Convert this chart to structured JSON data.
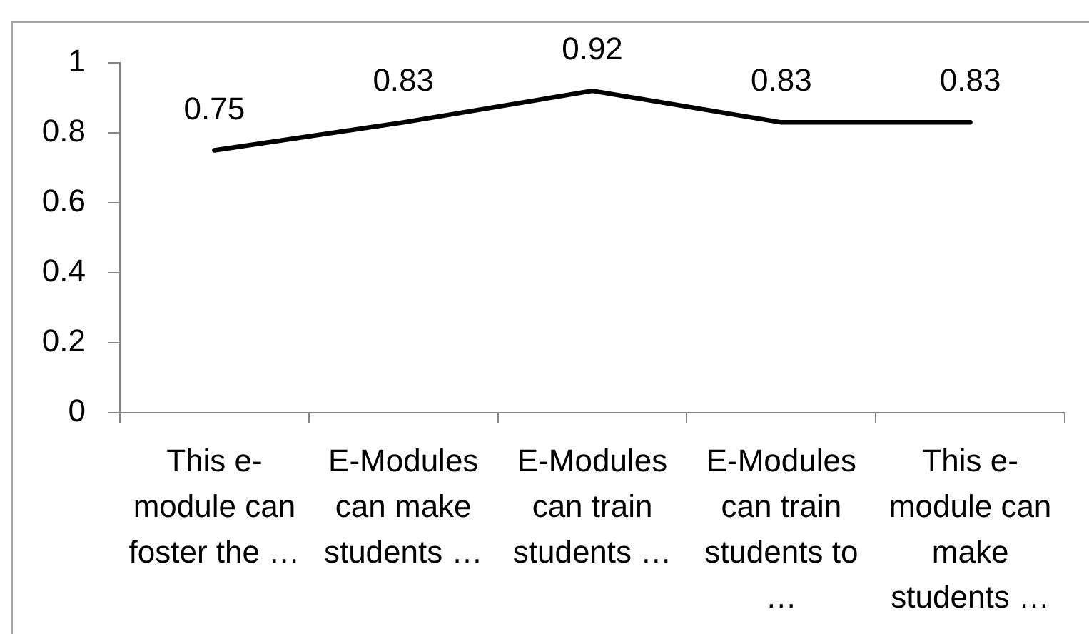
{
  "chart_data": {
    "type": "line",
    "categories": [
      "This e-module can foster the …",
      "E-Modules can make students …",
      "E-Modules can train students …",
      "E-Modules can train students to …",
      "This e-module can make students …"
    ],
    "values": [
      0.75,
      0.83,
      0.92,
      0.83,
      0.83
    ],
    "color": "#000000",
    "ylim": [
      0,
      1
    ],
    "yticks": [
      0,
      0.2,
      0.4,
      0.6,
      0.8,
      1
    ],
    "marker": "none",
    "line_style": "solid",
    "data_labels": true
  }
}
